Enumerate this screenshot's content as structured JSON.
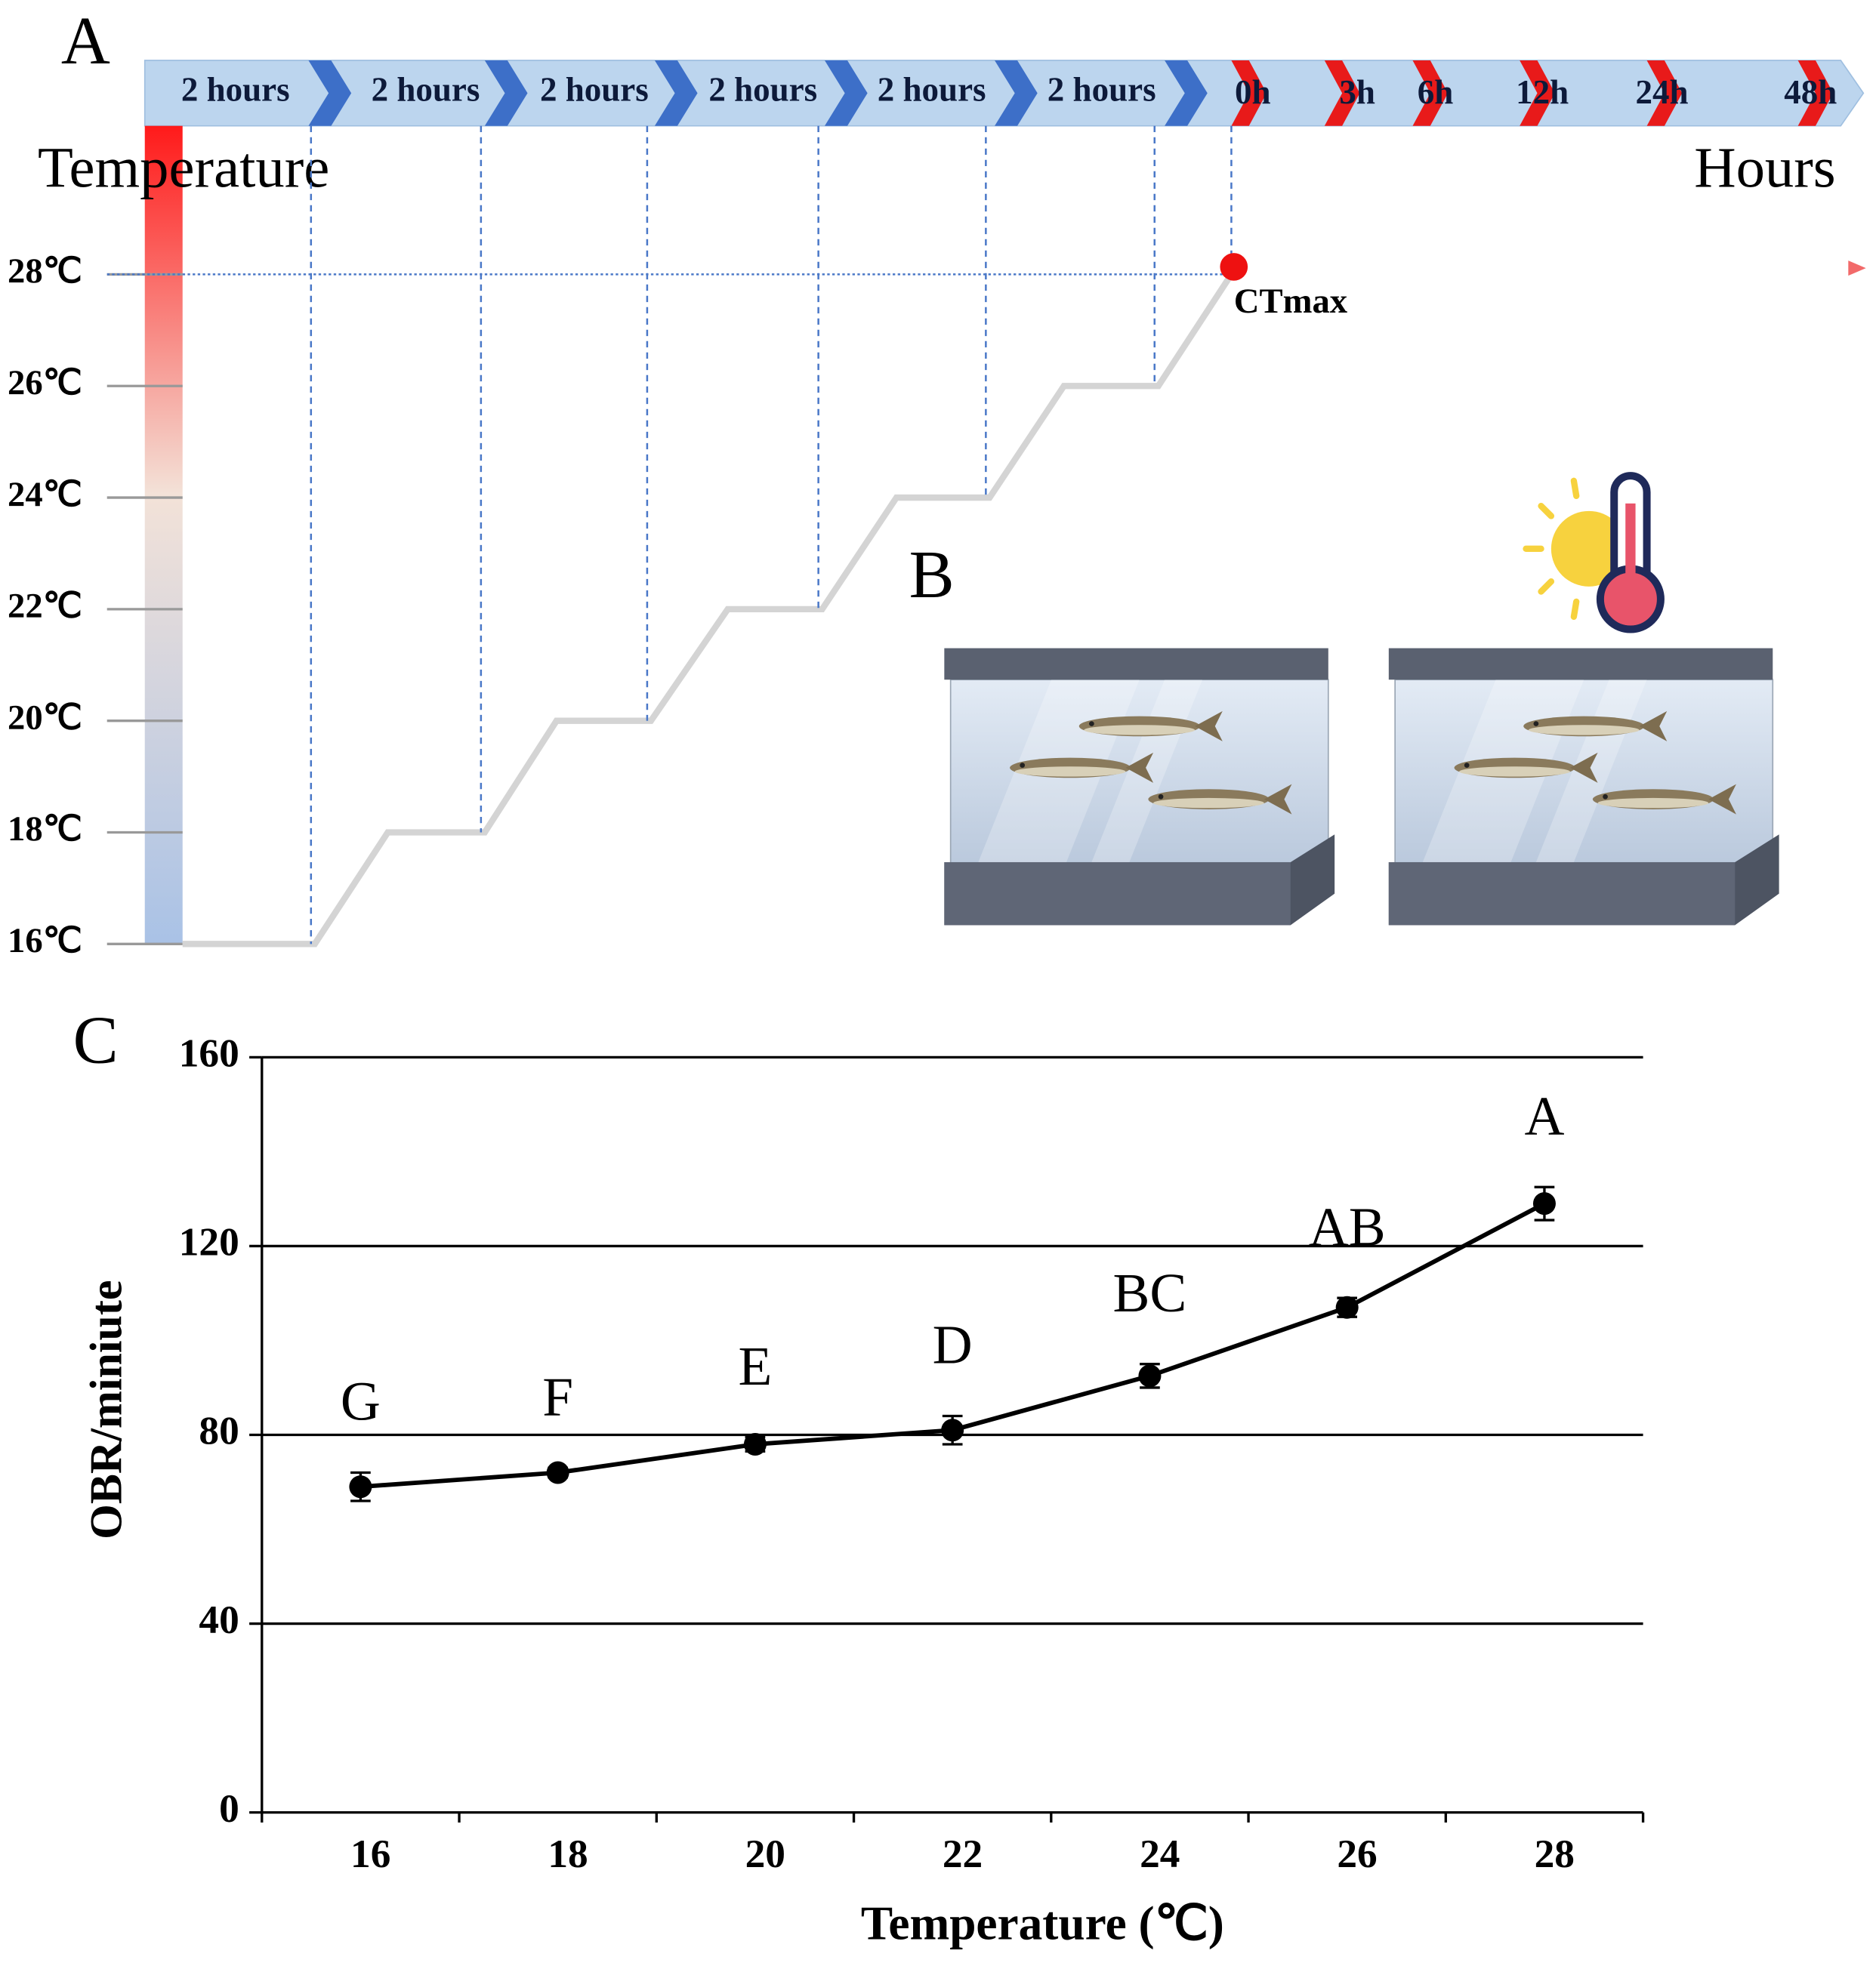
{
  "panel_a": {
    "label": "A",
    "stage_labels": [
      "2 hours",
      "2 hours",
      "2 hours",
      "2 hours",
      "2 hours",
      "2 hours"
    ],
    "hour_labels": [
      "0h",
      "3h",
      "6h",
      "12h",
      "24h",
      "48h"
    ],
    "axis_title": "Temperature",
    "time_title": "Hours",
    "temperature_labels": [
      "28℃",
      "26℃",
      "24℃",
      "22℃",
      "20℃",
      "18℃",
      "16℃"
    ],
    "marker_label": "CTmax"
  },
  "panel_b": {
    "label": "B"
  },
  "chart_data": {
    "type": "line",
    "panel_label": "C",
    "x_label": "Temperature (℃)",
    "y_label": "OBR/miniute",
    "categories": [
      "16",
      "18",
      "20",
      "22",
      "24",
      "26",
      "28"
    ],
    "values": [
      69,
      72,
      78,
      81,
      92.5,
      107,
      129
    ],
    "errors": [
      3,
      1,
      1.5,
      3,
      2.5,
      2,
      3.5
    ],
    "annotations": [
      "G",
      "F",
      "E",
      "D",
      "BC",
      "AB",
      "A"
    ],
    "color": "#000000",
    "ylim": [
      0,
      160
    ],
    "yticks": [
      0,
      40,
      80,
      120,
      160
    ],
    "grid": true
  }
}
